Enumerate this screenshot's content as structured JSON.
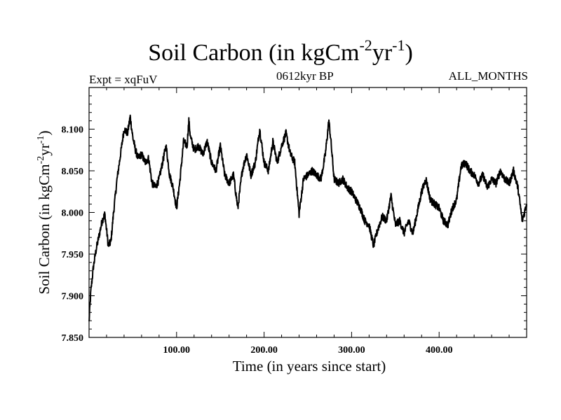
{
  "title": {
    "main": "Soil Carbon (in kgCm",
    "sup1": "-2",
    "mid": "yr",
    "sup2": "-1",
    "end": ")"
  },
  "subtitle": {
    "left": "Expt = xqFuV",
    "center": "0612kyr BP",
    "right": "ALL_MONTHS"
  },
  "ylabel": {
    "main": "Soil Carbon (in kgCm",
    "sup1": "-2",
    "mid": "yr",
    "sup2": "-1",
    "end": ")"
  },
  "colors": {
    "line": "#000000",
    "frame": "#000000",
    "background": "#ffffff"
  },
  "chart_data": {
    "type": "line",
    "title": "Soil Carbon (in kgCm-2yr-1)",
    "xlabel": "Time (in years since start)",
    "ylabel": "Soil Carbon (in kgCm-2yr-1)",
    "xlim": [
      0,
      500
    ],
    "ylim": [
      7.85,
      8.15
    ],
    "grid": false,
    "xticks": [
      100,
      200,
      300,
      400
    ],
    "xtick_labels": [
      "100.00",
      "200.00",
      "300.00",
      "400.00"
    ],
    "yticks": [
      7.85,
      7.9,
      7.95,
      8.0,
      8.05,
      8.1
    ],
    "ytick_labels": [
      "7.850",
      "7.900",
      "7.950",
      "8.000",
      "8.050",
      "8.100"
    ],
    "series": [
      {
        "name": "Soil Carbon",
        "x": [
          0,
          2,
          5,
          8,
          12,
          15,
          18,
          22,
          25,
          28,
          32,
          36,
          40,
          44,
          47,
          50,
          53,
          56,
          60,
          64,
          68,
          72,
          76,
          80,
          84,
          88,
          92,
          96,
          100,
          104,
          108,
          112,
          114,
          116,
          120,
          125,
          130,
          135,
          140,
          145,
          150,
          155,
          160,
          165,
          170,
          175,
          180,
          185,
          190,
          195,
          200,
          205,
          210,
          215,
          220,
          225,
          230,
          235,
          240,
          245,
          250,
          255,
          260,
          265,
          270,
          274,
          276,
          280,
          285,
          290,
          295,
          300,
          305,
          310,
          315,
          320,
          325,
          330,
          335,
          340,
          345,
          350,
          355,
          360,
          365,
          370,
          375,
          380,
          385,
          390,
          395,
          400,
          405,
          410,
          415,
          420,
          425,
          430,
          435,
          440,
          445,
          450,
          455,
          460,
          465,
          470,
          475,
          480,
          485,
          490,
          495,
          500
        ],
        "y": [
          7.868,
          7.905,
          7.935,
          7.955,
          7.975,
          7.99,
          7.998,
          7.96,
          7.965,
          8.0,
          8.04,
          8.07,
          8.1,
          8.095,
          8.115,
          8.09,
          8.075,
          8.065,
          8.07,
          8.06,
          8.065,
          8.035,
          8.03,
          8.04,
          8.06,
          8.08,
          8.045,
          8.03,
          8.005,
          8.04,
          8.085,
          8.08,
          8.11,
          8.09,
          8.075,
          8.08,
          8.07,
          8.085,
          8.06,
          8.05,
          8.08,
          8.045,
          8.035,
          8.045,
          8.005,
          8.05,
          8.07,
          8.045,
          8.06,
          8.1,
          8.06,
          8.05,
          8.085,
          8.06,
          8.08,
          8.095,
          8.07,
          8.06,
          7.998,
          8.04,
          8.045,
          8.05,
          8.045,
          8.04,
          8.07,
          8.11,
          8.09,
          8.04,
          8.035,
          8.04,
          8.03,
          8.025,
          8.015,
          8.005,
          7.99,
          7.985,
          7.96,
          7.98,
          7.995,
          7.99,
          8.02,
          7.985,
          7.99,
          7.975,
          7.99,
          7.975,
          8.0,
          8.025,
          8.04,
          8.015,
          8.01,
          8.005,
          7.99,
          7.985,
          8.005,
          8.015,
          8.055,
          8.06,
          8.05,
          8.045,
          8.035,
          8.045,
          8.03,
          8.04,
          8.035,
          8.05,
          8.04,
          8.035,
          8.05,
          8.03,
          7.99,
          8.01
        ]
      }
    ]
  }
}
